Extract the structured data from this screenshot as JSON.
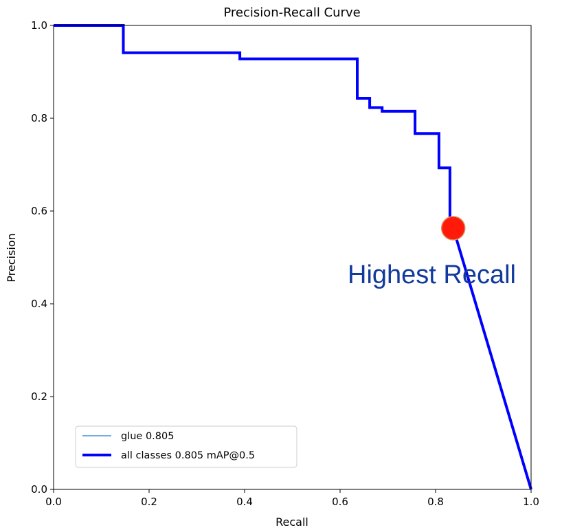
{
  "chart_data": {
    "type": "line",
    "title": "Precision-Recall Curve",
    "xlabel": "Recall",
    "ylabel": "Precision",
    "xlim": [
      0,
      1
    ],
    "ylim": [
      0,
      1
    ],
    "xticks": [
      "0.0",
      "0.2",
      "0.4",
      "0.6",
      "0.8",
      "1.0"
    ],
    "yticks": [
      "0.0",
      "0.2",
      "0.4",
      "0.6",
      "0.8",
      "1.0"
    ],
    "grid": false,
    "legend_position": "lower-left",
    "series": [
      {
        "name": "glue 0.805",
        "color": "#4c8fd6",
        "x": [
          0,
          0.146,
          0.146,
          0.39,
          0.39,
          0.636,
          0.636,
          0.662,
          0.662,
          0.688,
          0.688,
          0.757,
          0.757,
          0.807,
          0.807,
          0.83,
          0.83,
          0.837,
          1.0
        ],
        "y": [
          1.0,
          1.0,
          0.941,
          0.941,
          0.928,
          0.928,
          0.843,
          0.843,
          0.823,
          0.823,
          0.815,
          0.815,
          0.767,
          0.767,
          0.693,
          0.693,
          0.58,
          0.563,
          0.0
        ]
      },
      {
        "name": "all classes 0.805 mAP@0.5",
        "color": "#0000ff",
        "x": [
          0,
          0.146,
          0.146,
          0.39,
          0.39,
          0.636,
          0.636,
          0.662,
          0.662,
          0.688,
          0.688,
          0.757,
          0.757,
          0.807,
          0.807,
          0.83,
          0.83,
          0.837,
          1.0
        ],
        "y": [
          1.0,
          1.0,
          0.941,
          0.941,
          0.928,
          0.928,
          0.843,
          0.843,
          0.823,
          0.823,
          0.815,
          0.815,
          0.767,
          0.767,
          0.693,
          0.693,
          0.58,
          0.563,
          0.0
        ]
      }
    ],
    "highlight_point": {
      "x": 0.837,
      "y": 0.563,
      "color": "#ff1a0a"
    },
    "annotation": {
      "text": "Highest Recall",
      "color": "#123a9c"
    }
  }
}
